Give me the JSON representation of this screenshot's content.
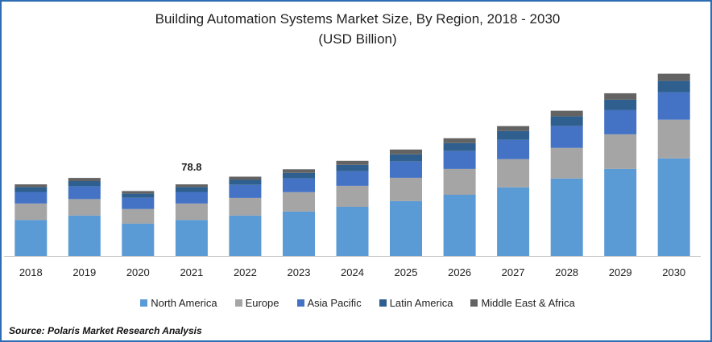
{
  "chart_data": {
    "type": "bar",
    "stacked": true,
    "title": "Building Automation Systems Market Size, By Region, 2018 - 2030",
    "subtitle": "(USD Billion)",
    "categories": [
      "2018",
      "2019",
      "2020",
      "2021",
      "2022",
      "2023",
      "2024",
      "2025",
      "2026",
      "2027",
      "2028",
      "2029",
      "2030"
    ],
    "series": [
      {
        "name": "North America",
        "color": "#5b9bd5",
        "values": [
          39.5,
          44.4,
          35.6,
          39.5,
          44.4,
          48.8,
          54.1,
          60.3,
          67.4,
          75.4,
          85.2,
          95.8,
          107.4
        ]
      },
      {
        "name": "Europe",
        "color": "#a5a5a5",
        "values": [
          18.1,
          18.1,
          16.0,
          18.1,
          19.5,
          21.3,
          23.1,
          25.8,
          28.4,
          31.1,
          33.7,
          38.1,
          42.6
        ]
      },
      {
        "name": "Asia Pacific",
        "color": "#4472c4",
        "values": [
          12.8,
          14.2,
          12.4,
          12.8,
          14.2,
          15.1,
          16.0,
          17.7,
          19.5,
          21.3,
          24.0,
          26.6,
          30.2
        ]
      },
      {
        "name": "Latin America",
        "color": "#2e5f8e",
        "values": [
          5.3,
          5.7,
          4.6,
          5.3,
          5.7,
          6.2,
          7.1,
          8.0,
          8.9,
          9.8,
          10.7,
          11.5,
          12.4
        ]
      },
      {
        "name": "Middle East & Africa",
        "color": "#636363",
        "values": [
          3.1,
          3.5,
          2.8,
          3.1,
          3.5,
          4.0,
          4.4,
          5.3,
          5.3,
          5.3,
          6.2,
          7.1,
          8.0
        ]
      }
    ],
    "annotations": [
      {
        "category": "2021",
        "text": "78.8"
      }
    ],
    "ylim": [
      0,
      200
    ],
    "xlabel": "",
    "ylabel": "",
    "legend_position": "bottom"
  },
  "source": "Source: Polaris  Market Research Analysis"
}
